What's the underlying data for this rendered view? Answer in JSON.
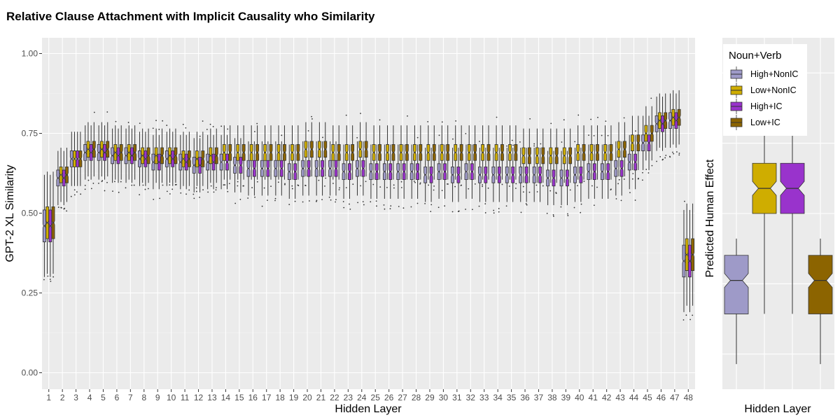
{
  "chart_data": [
    {
      "type": "boxplot",
      "title": "Relative Clause Attachment with Implicit Causality who Similarity",
      "xlabel": "Hidden Layer",
      "ylabel": "GPT-2 XL Similarity",
      "ylim": [
        0,
        1.02
      ],
      "yticks": [
        "0.00",
        "0.25",
        "0.50",
        "0.75",
        "1.00"
      ],
      "categories": [
        "1",
        "2",
        "3",
        "4",
        "5",
        "6",
        "7",
        "8",
        "9",
        "10",
        "11",
        "12",
        "13",
        "14",
        "15",
        "16",
        "17",
        "18",
        "19",
        "20",
        "21",
        "22",
        "23",
        "24",
        "25",
        "26",
        "27",
        "28",
        "29",
        "30",
        "31",
        "32",
        "33",
        "34",
        "35",
        "36",
        "37",
        "38",
        "39",
        "40",
        "41",
        "42",
        "43",
        "44",
        "45",
        "46",
        "47",
        "48"
      ],
      "legend": {
        "title": "Noun+Verb",
        "placement": "right",
        "entries": [
          "High+NonIC",
          "Low+NonIC",
          "High+IC",
          "Low+IC"
        ]
      },
      "series": [
        {
          "name": "High+NonIC",
          "color": "#9e9ac8",
          "medians": [
            0.46,
            0.61,
            0.67,
            0.69,
            0.69,
            0.68,
            0.68,
            0.67,
            0.66,
            0.67,
            0.66,
            0.65,
            0.66,
            0.66,
            0.65,
            0.64,
            0.64,
            0.64,
            0.63,
            0.64,
            0.64,
            0.64,
            0.63,
            0.64,
            0.63,
            0.63,
            0.63,
            0.63,
            0.62,
            0.63,
            0.62,
            0.63,
            0.62,
            0.62,
            0.62,
            0.62,
            0.62,
            0.61,
            0.61,
            0.62,
            0.63,
            0.63,
            0.64,
            0.66,
            0.72,
            0.78,
            0.79,
            0.35
          ]
        },
        {
          "name": "Low+NonIC",
          "color": "#cfad00",
          "medians": [
            0.47,
            0.62,
            0.67,
            0.7,
            0.7,
            0.69,
            0.69,
            0.68,
            0.68,
            0.68,
            0.67,
            0.67,
            0.68,
            0.69,
            0.69,
            0.69,
            0.69,
            0.69,
            0.69,
            0.7,
            0.7,
            0.69,
            0.69,
            0.7,
            0.69,
            0.69,
            0.69,
            0.69,
            0.69,
            0.69,
            0.69,
            0.69,
            0.69,
            0.69,
            0.69,
            0.68,
            0.68,
            0.68,
            0.68,
            0.69,
            0.69,
            0.69,
            0.7,
            0.72,
            0.75,
            0.79,
            0.8,
            0.37
          ]
        },
        {
          "name": "High+IC",
          "color": "#9933cc",
          "medians": [
            0.46,
            0.61,
            0.67,
            0.69,
            0.69,
            0.68,
            0.68,
            0.67,
            0.66,
            0.67,
            0.66,
            0.65,
            0.66,
            0.66,
            0.65,
            0.64,
            0.64,
            0.64,
            0.63,
            0.64,
            0.64,
            0.64,
            0.63,
            0.64,
            0.63,
            0.63,
            0.63,
            0.63,
            0.62,
            0.63,
            0.62,
            0.63,
            0.62,
            0.62,
            0.62,
            0.62,
            0.62,
            0.61,
            0.61,
            0.62,
            0.63,
            0.63,
            0.64,
            0.66,
            0.72,
            0.78,
            0.79,
            0.35
          ]
        },
        {
          "name": "Low+IC",
          "color": "#8c6400",
          "medians": [
            0.47,
            0.62,
            0.67,
            0.7,
            0.7,
            0.69,
            0.69,
            0.68,
            0.68,
            0.68,
            0.67,
            0.67,
            0.68,
            0.69,
            0.69,
            0.69,
            0.69,
            0.69,
            0.69,
            0.7,
            0.7,
            0.69,
            0.69,
            0.7,
            0.69,
            0.69,
            0.69,
            0.69,
            0.69,
            0.69,
            0.69,
            0.69,
            0.69,
            0.69,
            0.69,
            0.68,
            0.68,
            0.68,
            0.68,
            0.69,
            0.69,
            0.69,
            0.7,
            0.72,
            0.75,
            0.79,
            0.8,
            0.37
          ]
        }
      ],
      "grid": true
    },
    {
      "type": "boxplot",
      "xlabel": "Hidden Layer",
      "ylabel": "Predicted Human Effect",
      "series": [
        {
          "name": "High+NonIC",
          "color": "#9e9ac8",
          "min": -1.9,
          "q1": -1.3,
          "median": -0.9,
          "q3": -0.6,
          "max": -0.4
        },
        {
          "name": "Low+NonIC",
          "color": "#cfad00",
          "min": -1.3,
          "q1": -0.1,
          "median": 0.2,
          "q3": 0.5,
          "max": 1.3
        },
        {
          "name": "High+IC",
          "color": "#9933cc",
          "min": -1.3,
          "q1": -0.1,
          "median": 0.2,
          "q3": 0.5,
          "max": 1.3
        },
        {
          "name": "Low+IC",
          "color": "#8c6400",
          "min": -1.9,
          "q1": -1.3,
          "median": -0.9,
          "q3": -0.6,
          "max": -0.4
        }
      ]
    }
  ]
}
